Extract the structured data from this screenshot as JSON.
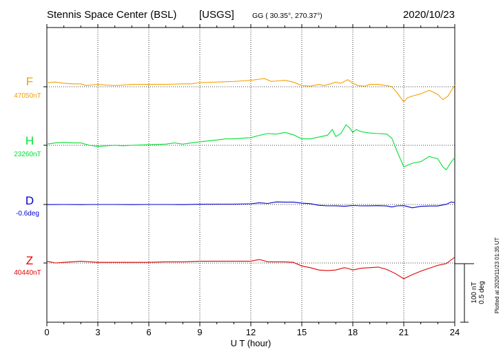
{
  "header": {
    "station": "Stennis Space Center (BSL)",
    "agency": "[USGS]",
    "coords": "GG ( 30.35°, 270.37°)",
    "date": "2020/10/23"
  },
  "footer": {
    "plotted": "Plotted at 2020/11/23 01:35 UT"
  },
  "chart_data": {
    "type": "line",
    "xlabel": "U T (hour)",
    "xlim": [
      0,
      24
    ],
    "xticks": [
      0,
      3,
      6,
      9,
      12,
      15,
      18,
      21,
      24
    ],
    "grid": true,
    "scale_bar": {
      "nT_label": "100 nT",
      "deg_label": "0.5 deg"
    },
    "colors": {
      "F": "#f5a000",
      "H": "#00e030",
      "D": "#0000cc",
      "Z": "#e00000"
    },
    "series": [
      {
        "name": "F",
        "baseline_label": "47050nT",
        "unit": "nT",
        "baseline": 47050,
        "scale_nT": 100,
        "points": [
          [
            0,
            47057
          ],
          [
            0.5,
            47058
          ],
          [
            1,
            47056
          ],
          [
            1.5,
            47055
          ],
          [
            2,
            47055
          ],
          [
            2.3,
            47052
          ],
          [
            2.6,
            47053
          ],
          [
            3,
            47054
          ],
          [
            3.5,
            47053
          ],
          [
            4,
            47052
          ],
          [
            4.5,
            47053
          ],
          [
            5,
            47054
          ],
          [
            6,
            47054
          ],
          [
            7,
            47054
          ],
          [
            8,
            47055
          ],
          [
            8.5,
            47055
          ],
          [
            9,
            47057
          ],
          [
            10,
            47058
          ],
          [
            11,
            47059
          ],
          [
            11.5,
            47060
          ],
          [
            12,
            47061
          ],
          [
            12.5,
            47063
          ],
          [
            12.8,
            47064
          ],
          [
            13.2,
            47059
          ],
          [
            13.6,
            47060
          ],
          [
            14,
            47061
          ],
          [
            14.5,
            47058
          ],
          [
            15,
            47052
          ],
          [
            15.5,
            47051
          ],
          [
            16,
            47054
          ],
          [
            16.3,
            47052
          ],
          [
            16.7,
            47055
          ],
          [
            17,
            47058
          ],
          [
            17.3,
            47056
          ],
          [
            17.7,
            47062
          ],
          [
            18,
            47056
          ],
          [
            18.3,
            47052
          ],
          [
            18.7,
            47051
          ],
          [
            19,
            47054
          ],
          [
            19.5,
            47054
          ],
          [
            20,
            47052
          ],
          [
            20.3,
            47050
          ],
          [
            20.6,
            47040
          ],
          [
            21,
            47024
          ],
          [
            21.2,
            47031
          ],
          [
            21.5,
            47034
          ],
          [
            22,
            47038
          ],
          [
            22.5,
            47044
          ],
          [
            23,
            47037
          ],
          [
            23.3,
            47028
          ],
          [
            23.6,
            47034
          ],
          [
            24,
            47053
          ]
        ]
      },
      {
        "name": "H",
        "baseline_label": "23260nT",
        "unit": "nT",
        "baseline": 23260,
        "scale_nT": 100,
        "points": [
          [
            0,
            23262
          ],
          [
            0.5,
            23264
          ],
          [
            1,
            23265
          ],
          [
            1.5,
            23264
          ],
          [
            2,
            23264
          ],
          [
            2.5,
            23260
          ],
          [
            3,
            23258
          ],
          [
            3.5,
            23259
          ],
          [
            4,
            23260
          ],
          [
            4.5,
            23259
          ],
          [
            5,
            23260
          ],
          [
            6,
            23261
          ],
          [
            7,
            23262
          ],
          [
            7.5,
            23264
          ],
          [
            8,
            23262
          ],
          [
            8.5,
            23264
          ],
          [
            9,
            23266
          ],
          [
            10,
            23269
          ],
          [
            10.5,
            23271
          ],
          [
            11,
            23271
          ],
          [
            11.5,
            23272
          ],
          [
            12,
            23273
          ],
          [
            12.5,
            23277
          ],
          [
            13,
            23280
          ],
          [
            13.5,
            23279
          ],
          [
            14,
            23282
          ],
          [
            14.5,
            23278
          ],
          [
            15,
            23271
          ],
          [
            15.5,
            23271
          ],
          [
            16,
            23274
          ],
          [
            16.5,
            23277
          ],
          [
            16.8,
            23287
          ],
          [
            17,
            23275
          ],
          [
            17.3,
            23280
          ],
          [
            17.6,
            23295
          ],
          [
            17.8,
            23290
          ],
          [
            18,
            23282
          ],
          [
            18.2,
            23287
          ],
          [
            18.5,
            23283
          ],
          [
            19,
            23281
          ],
          [
            19.5,
            23280
          ],
          [
            20,
            23279
          ],
          [
            20.3,
            23272
          ],
          [
            20.6,
            23250
          ],
          [
            21,
            23223
          ],
          [
            21.3,
            23227
          ],
          [
            21.6,
            23230
          ],
          [
            22,
            23232
          ],
          [
            22.5,
            23241
          ],
          [
            23,
            23237
          ],
          [
            23.3,
            23223
          ],
          [
            23.5,
            23218
          ],
          [
            23.8,
            23232
          ],
          [
            24,
            23239
          ]
        ]
      },
      {
        "name": "D",
        "baseline_label": "-0.6deg",
        "unit": "deg",
        "baseline": -0.6,
        "scale_deg": 0.5,
        "points": [
          [
            0,
            -0.601
          ],
          [
            1,
            -0.6
          ],
          [
            2,
            -0.601
          ],
          [
            3,
            -0.6
          ],
          [
            4,
            -0.6
          ],
          [
            5,
            -0.601
          ],
          [
            6,
            -0.6
          ],
          [
            7,
            -0.6
          ],
          [
            8,
            -0.601
          ],
          [
            9,
            -0.598
          ],
          [
            10,
            -0.597
          ],
          [
            11,
            -0.597
          ],
          [
            12,
            -0.594
          ],
          [
            12.5,
            -0.586
          ],
          [
            13,
            -0.591
          ],
          [
            13.5,
            -0.578
          ],
          [
            14,
            -0.58
          ],
          [
            14.5,
            -0.58
          ],
          [
            15,
            -0.589
          ],
          [
            15.5,
            -0.593
          ],
          [
            16,
            -0.607
          ],
          [
            16.5,
            -0.612
          ],
          [
            17,
            -0.611
          ],
          [
            17.5,
            -0.615
          ],
          [
            18,
            -0.609
          ],
          [
            18.5,
            -0.612
          ],
          [
            19,
            -0.611
          ],
          [
            19.5,
            -0.61
          ],
          [
            20,
            -0.613
          ],
          [
            20.3,
            -0.622
          ],
          [
            20.6,
            -0.612
          ],
          [
            21,
            -0.61
          ],
          [
            21.5,
            -0.628
          ],
          [
            22,
            -0.616
          ],
          [
            22.5,
            -0.613
          ],
          [
            23,
            -0.613
          ],
          [
            23.5,
            -0.598
          ],
          [
            23.8,
            -0.578
          ],
          [
            24,
            -0.585
          ]
        ]
      },
      {
        "name": "Z",
        "baseline_label": "40440nT",
        "unit": "nT",
        "baseline": 40440,
        "scale_nT": 100,
        "points": [
          [
            0,
            40443
          ],
          [
            0.5,
            40440
          ],
          [
            1,
            40441
          ],
          [
            2,
            40443
          ],
          [
            3,
            40441
          ],
          [
            4,
            40441
          ],
          [
            5,
            40441
          ],
          [
            6,
            40441
          ],
          [
            7,
            40442
          ],
          [
            8,
            40442
          ],
          [
            9,
            40443
          ],
          [
            10,
            40443
          ],
          [
            11,
            40443
          ],
          [
            12,
            40443
          ],
          [
            12.5,
            40446
          ],
          [
            13,
            40442
          ],
          [
            14,
            40442
          ],
          [
            14.5,
            40441
          ],
          [
            15,
            40435
          ],
          [
            15.5,
            40432
          ],
          [
            16,
            40428
          ],
          [
            16.5,
            40427
          ],
          [
            17,
            40428
          ],
          [
            17.5,
            40432
          ],
          [
            17.8,
            40430
          ],
          [
            18,
            40428
          ],
          [
            18.5,
            40431
          ],
          [
            19,
            40432
          ],
          [
            19.5,
            40433
          ],
          [
            20,
            40429
          ],
          [
            20.5,
            40422
          ],
          [
            21,
            40413
          ],
          [
            21.5,
            40420
          ],
          [
            22,
            40426
          ],
          [
            22.5,
            40431
          ],
          [
            23,
            40436
          ],
          [
            23.5,
            40439
          ],
          [
            24,
            40450
          ]
        ]
      }
    ]
  }
}
